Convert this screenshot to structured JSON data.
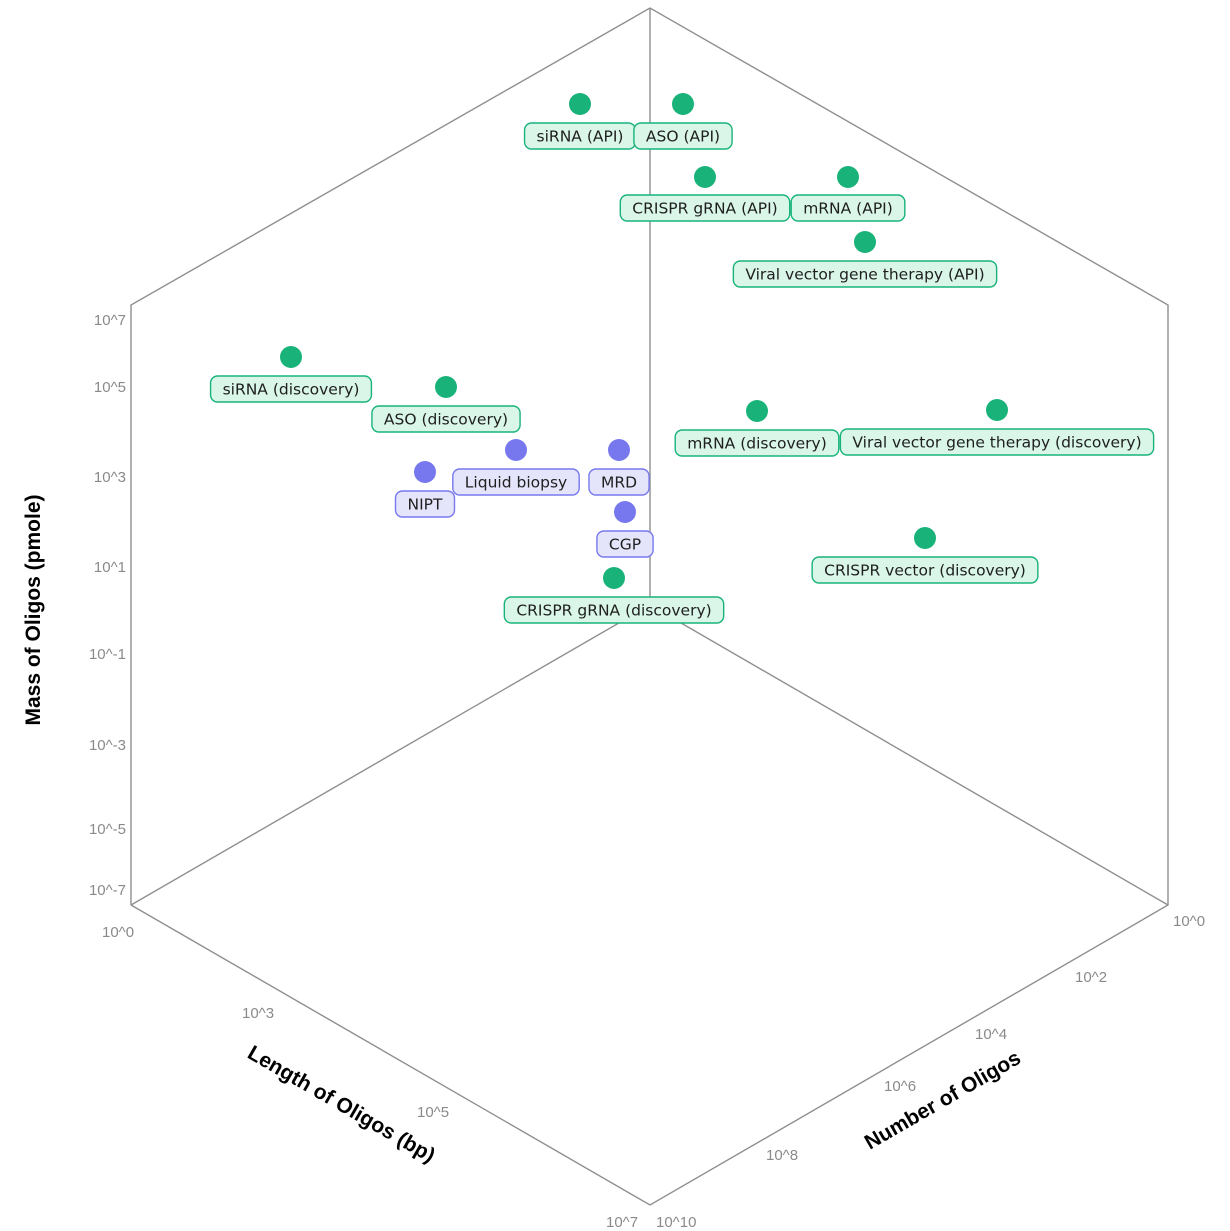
{
  "chart_data": {
    "type": "scatter",
    "axes": {
      "mass": {
        "title": "Mass of Oligos (pmole)",
        "ticks": [
          "10^7",
          "10^5",
          "10^3",
          "10^1",
          "10^-1",
          "10^-3",
          "10^-5",
          "10^-7"
        ]
      },
      "length": {
        "title": "Length of Oligos (bp)",
        "ticks": [
          "10^0",
          "10^3",
          "10^5",
          "10^7"
        ]
      },
      "number": {
        "title": "Number of Oligos",
        "ticks": [
          "10^0",
          "10^2",
          "10^4",
          "10^6",
          "10^8",
          "10^10"
        ]
      }
    },
    "colors": {
      "therapeutic_point": "#19b37a",
      "therapeutic_label_fill": "#d9f6e8",
      "therapeutic_label_stroke": "#19b37a",
      "diagnostic_point": "#7878ee",
      "diagnostic_label_fill": "#e4e4fb",
      "diagnostic_label_stroke": "#7878ee",
      "frame": "#8f8f8f"
    },
    "points": [
      {
        "label": "siRNA (API)",
        "group": "therapeutic"
      },
      {
        "label": "ASO (API)",
        "group": "therapeutic"
      },
      {
        "label": "CRISPR gRNA (API)",
        "group": "therapeutic"
      },
      {
        "label": "mRNA (API)",
        "group": "therapeutic"
      },
      {
        "label": "Viral vector gene therapy (API)",
        "group": "therapeutic"
      },
      {
        "label": "siRNA (discovery)",
        "group": "therapeutic"
      },
      {
        "label": "ASO (discovery)",
        "group": "therapeutic"
      },
      {
        "label": "Liquid biopsy",
        "group": "diagnostic"
      },
      {
        "label": "MRD",
        "group": "diagnostic"
      },
      {
        "label": "NIPT",
        "group": "diagnostic"
      },
      {
        "label": "CGP",
        "group": "diagnostic"
      },
      {
        "label": "CRISPR gRNA (discovery)",
        "group": "therapeutic"
      },
      {
        "label": "mRNA (discovery)",
        "group": "therapeutic"
      },
      {
        "label": "Viral vector gene therapy (discovery)",
        "group": "therapeutic"
      },
      {
        "label": "CRISPR vector (discovery)",
        "group": "therapeutic"
      }
    ]
  }
}
